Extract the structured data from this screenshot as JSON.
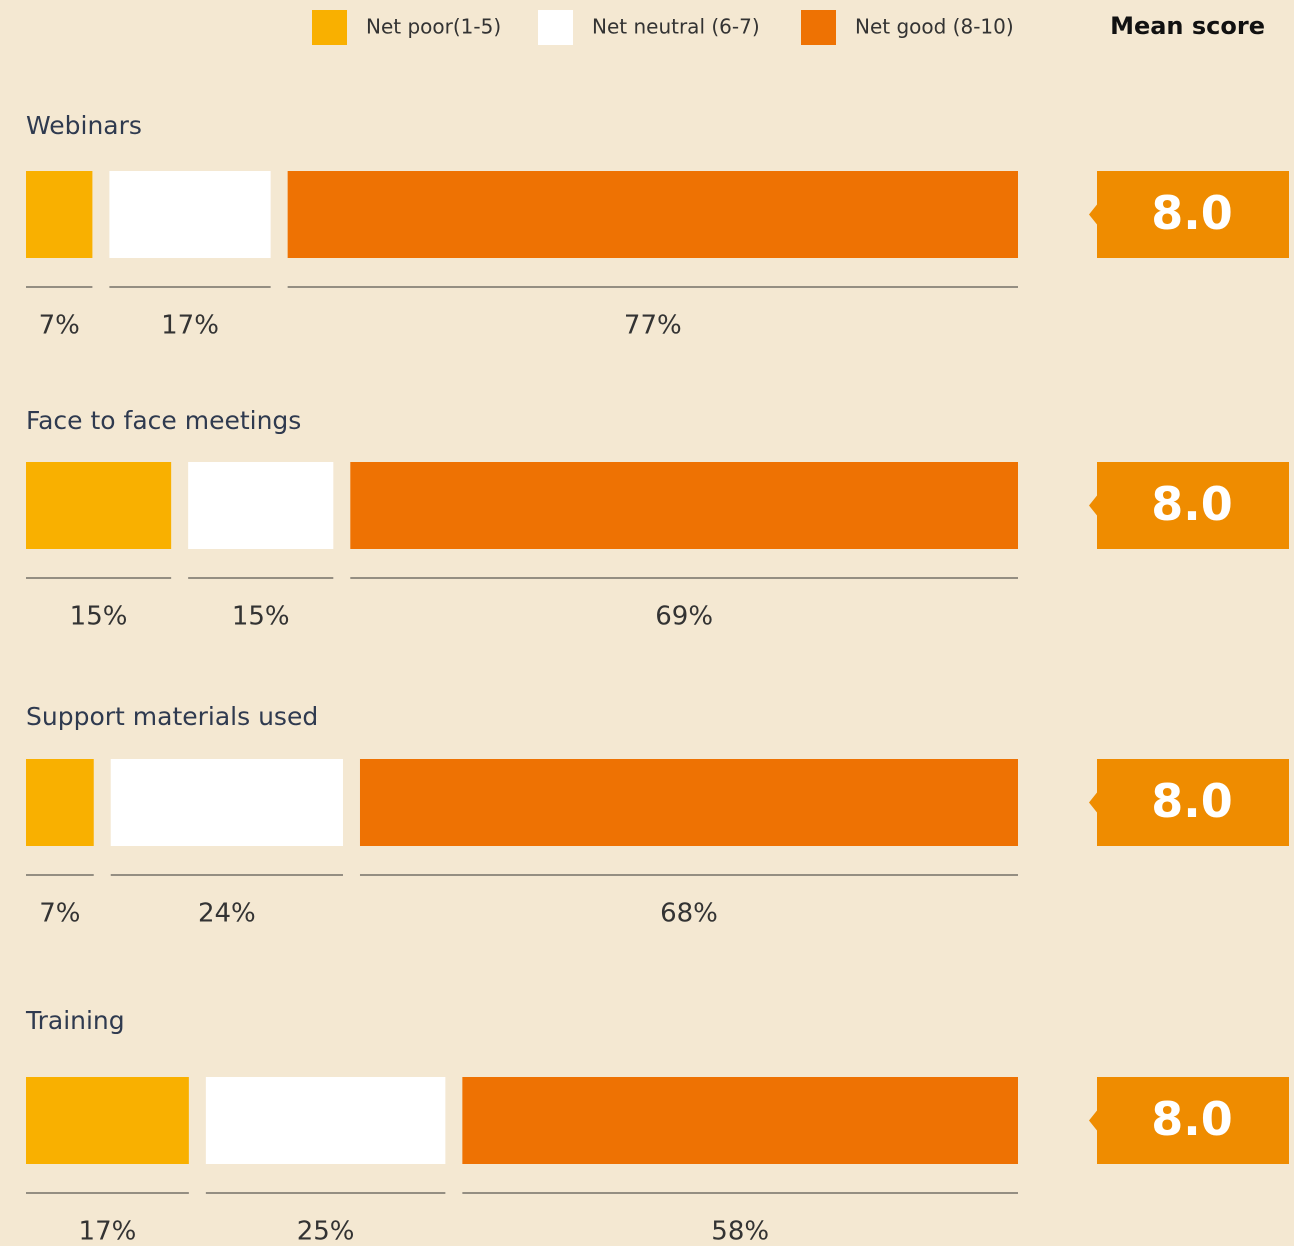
{
  "chart_data": {
    "type": "bar",
    "orientation": "horizontal",
    "stacked": true,
    "categories": [
      "Webinars",
      "Face to face meetings",
      "Support materials used",
      "Training"
    ],
    "series": [
      {
        "name": "Net poor(1-5)",
        "color": "#f9b000",
        "values": [
          7,
          15,
          7,
          17
        ],
        "value_labels": [
          "7%",
          "15%",
          "7%",
          "17%"
        ]
      },
      {
        "name": "Net neutral (6-7)",
        "color": "#ffffff",
        "values": [
          17,
          15,
          24,
          25
        ],
        "value_labels": [
          "17%",
          "15%",
          "24%",
          "25%"
        ]
      },
      {
        "name": "Net good (8-10)",
        "color": "#ee7203",
        "values": [
          77,
          69,
          68,
          58
        ],
        "value_labels": [
          "77%",
          "69%",
          "68%",
          "58%"
        ]
      }
    ],
    "mean_score": {
      "title": "Mean score",
      "values": [
        8,
        8,
        8,
        8
      ],
      "value_labels": [
        "8.0",
        "8.0",
        "8.0",
        "8.0"
      ],
      "color": "#ef8c00"
    }
  }
}
